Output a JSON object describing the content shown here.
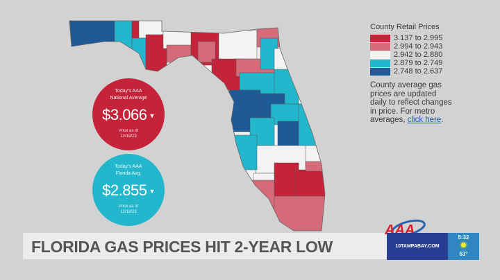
{
  "colors": {
    "bucket1": "#c5233a",
    "bucket2": "#d56b79",
    "bucket3": "#f3f3f3",
    "bucket4": "#22b7cc",
    "bucket5": "#1e5a96",
    "background": "#d2d2d2"
  },
  "national": {
    "label_line1": "Today's AAA",
    "label_line2": "National Average",
    "price": "$3.066",
    "trend_icon": "down-triangle",
    "asof_line1": "Price as of",
    "asof_line2": "12/18/23"
  },
  "florida": {
    "label_line1": "Today's AAA",
    "label_line2": "Florida Avg.",
    "price": "$2.855",
    "trend_icon": "down-triangle",
    "asof_line1": "Price as of",
    "asof_line2": "12/18/23"
  },
  "legend": {
    "title": "County Retail Prices",
    "items": [
      {
        "label": "3.137 to 2.995",
        "color": "#c5233a"
      },
      {
        "label": "2.994 to 2.943",
        "color": "#d56b79"
      },
      {
        "label": "2.942 to 2.880",
        "color": "#f3f3f3"
      },
      {
        "label": "2.879 to 2.749",
        "color": "#22b7cc"
      },
      {
        "label": "2.748 to 2.637",
        "color": "#1e5a96"
      }
    ],
    "note": "County average gas prices are updated daily to reflect changes in price. For metro averages,",
    "link": "click here",
    "note_end": "."
  },
  "headline": "FLORIDA GAS PRICES HIT 2-YEAR LOW",
  "ticker": {
    "site": "10TAMPABAY.COM",
    "time": "5:32",
    "weather_icon": "sun",
    "temp": "63°"
  },
  "logo": "AAA"
}
